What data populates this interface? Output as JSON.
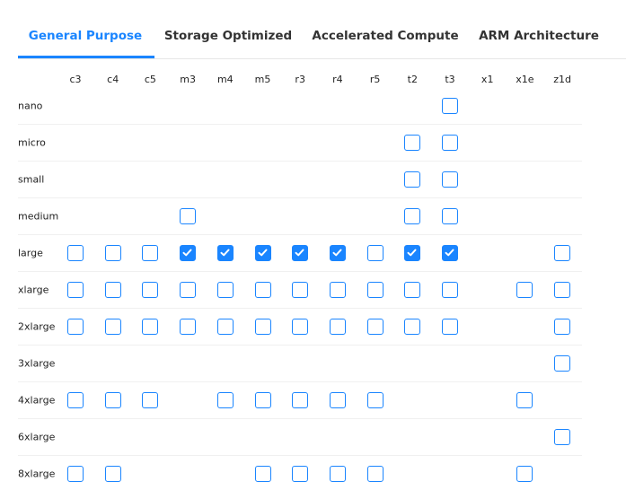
{
  "tabs": [
    {
      "label": "General Purpose",
      "active": true
    },
    {
      "label": "Storage Optimized",
      "active": false
    },
    {
      "label": "Accelerated Compute",
      "active": false
    },
    {
      "label": "ARM Architecture",
      "active": false
    }
  ],
  "accent_color": "#1a85ff",
  "columns": [
    "c3",
    "c4",
    "c5",
    "m3",
    "m4",
    "m5",
    "r3",
    "r4",
    "r5",
    "t2",
    "t3",
    "x1",
    "x1e",
    "z1d"
  ],
  "rows": [
    {
      "label": "nano",
      "cells": [
        null,
        null,
        null,
        null,
        null,
        null,
        null,
        null,
        null,
        null,
        0,
        null,
        null,
        null
      ]
    },
    {
      "label": "micro",
      "cells": [
        null,
        null,
        null,
        null,
        null,
        null,
        null,
        null,
        null,
        0,
        0,
        null,
        null,
        null
      ]
    },
    {
      "label": "small",
      "cells": [
        null,
        null,
        null,
        null,
        null,
        null,
        null,
        null,
        null,
        0,
        0,
        null,
        null,
        null
      ]
    },
    {
      "label": "medium",
      "cells": [
        null,
        null,
        null,
        0,
        null,
        null,
        null,
        null,
        null,
        0,
        0,
        null,
        null,
        null
      ]
    },
    {
      "label": "large",
      "cells": [
        0,
        0,
        0,
        1,
        1,
        1,
        1,
        1,
        0,
        1,
        1,
        null,
        null,
        0
      ]
    },
    {
      "label": "xlarge",
      "cells": [
        0,
        0,
        0,
        0,
        0,
        0,
        0,
        0,
        0,
        0,
        0,
        null,
        0,
        0
      ]
    },
    {
      "label": "2xlarge",
      "cells": [
        0,
        0,
        0,
        0,
        0,
        0,
        0,
        0,
        0,
        0,
        0,
        null,
        null,
        0
      ]
    },
    {
      "label": "3xlarge",
      "cells": [
        null,
        null,
        null,
        null,
        null,
        null,
        null,
        null,
        null,
        null,
        null,
        null,
        null,
        0
      ]
    },
    {
      "label": "4xlarge",
      "cells": [
        0,
        0,
        0,
        null,
        0,
        0,
        0,
        0,
        0,
        null,
        null,
        null,
        0,
        null
      ]
    },
    {
      "label": "6xlarge",
      "cells": [
        null,
        null,
        null,
        null,
        null,
        null,
        null,
        null,
        null,
        null,
        null,
        null,
        null,
        0
      ]
    },
    {
      "label": "8xlarge",
      "cells": [
        0,
        0,
        null,
        null,
        null,
        0,
        0,
        0,
        0,
        null,
        null,
        null,
        0,
        null
      ]
    }
  ]
}
